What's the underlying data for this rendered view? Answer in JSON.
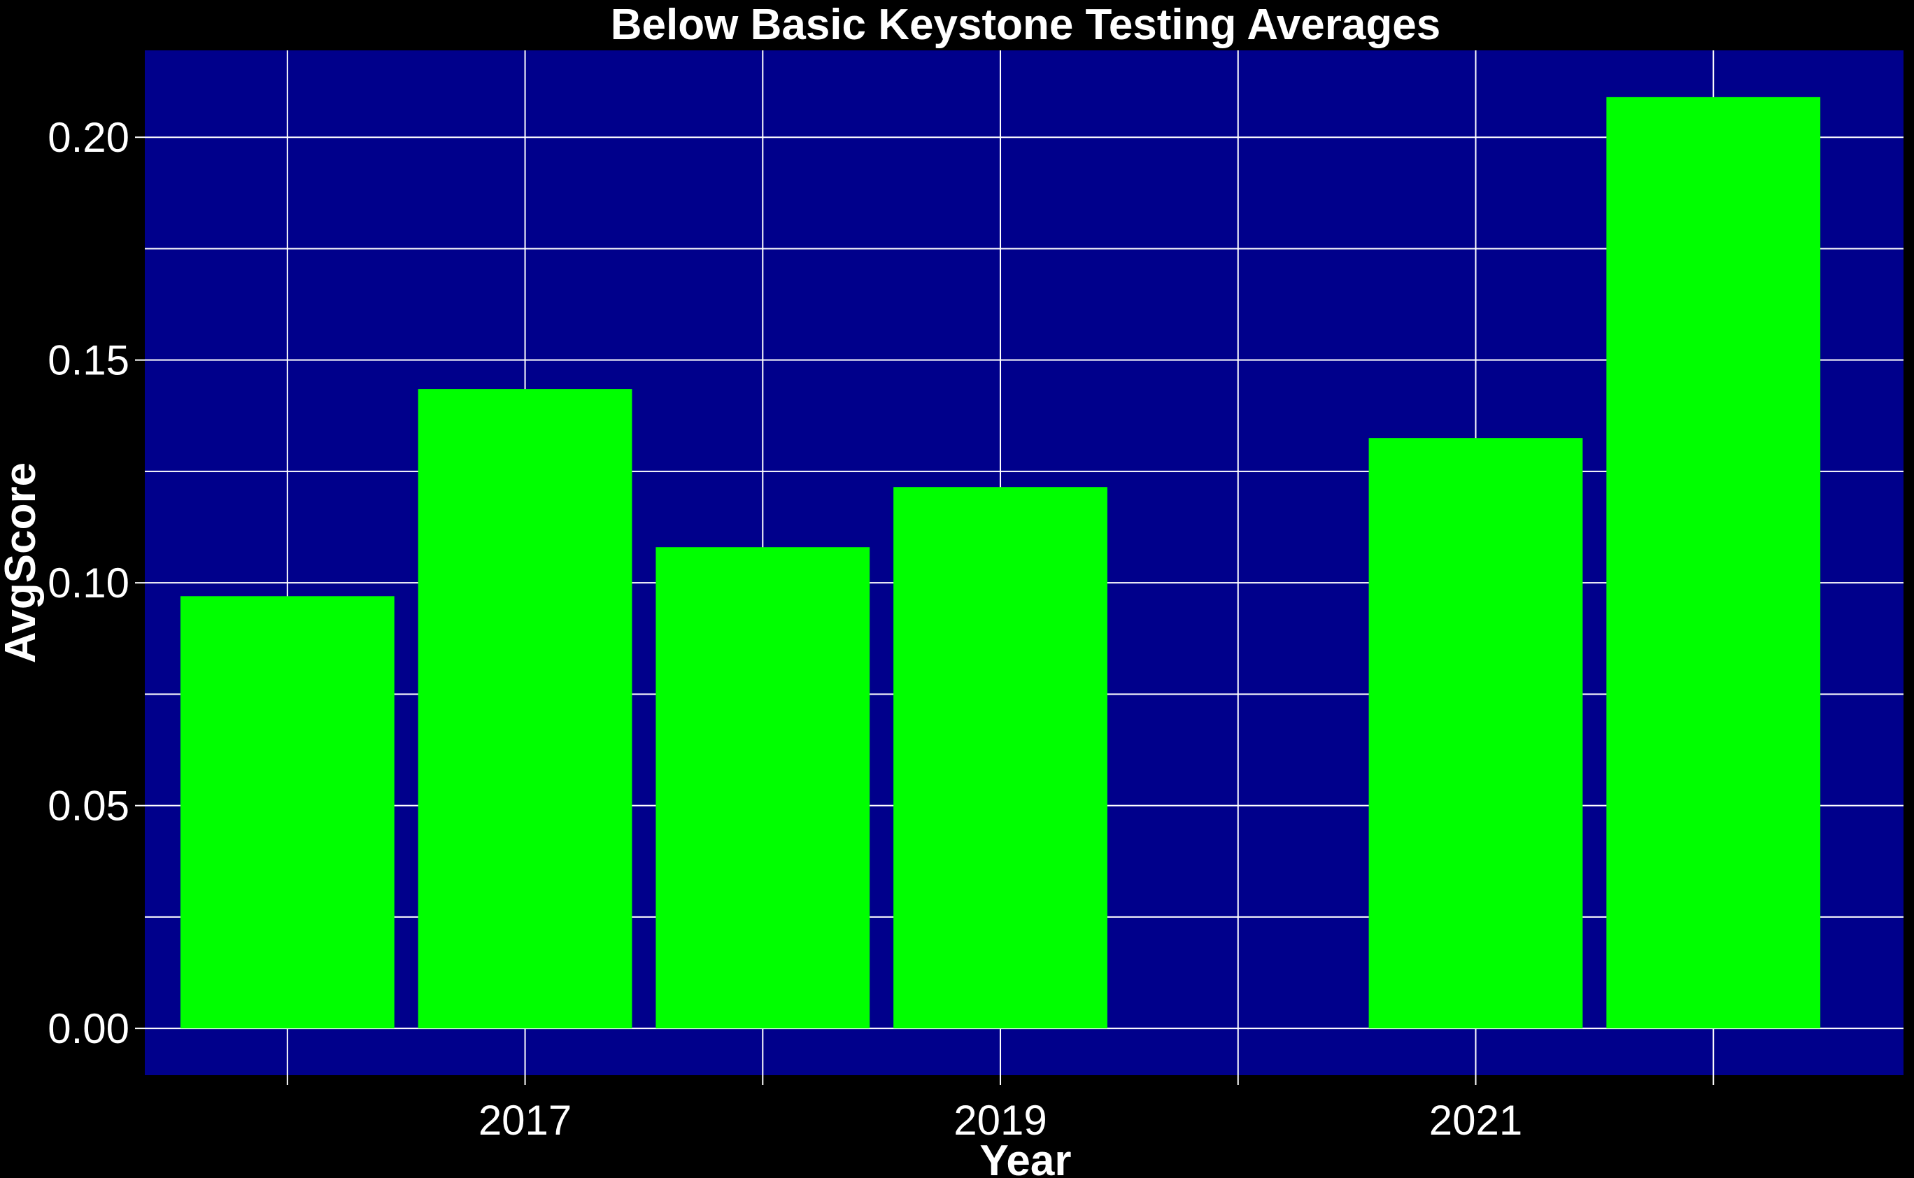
{
  "colors": {
    "background": "#000000",
    "panel": "#00008B",
    "bar": "#00FF00",
    "grid": "#FFFFFF",
    "text": "#FFFFFF"
  },
  "chart_data": {
    "type": "bar",
    "title": "Below Basic Keystone Testing Averages",
    "xlabel": "Year",
    "ylabel": "AvgScore",
    "categories": [
      2016,
      2017,
      2018,
      2019,
      2021,
      2022
    ],
    "values": [
      0.097,
      0.1435,
      0.108,
      0.1215,
      0.1325,
      0.209
    ],
    "xlim": [
      2015.4,
      2022.8
    ],
    "ylim": [
      -0.0105,
      0.2195
    ],
    "x_ticks": [
      2017,
      2019,
      2021
    ],
    "x_tick_labels": [
      "2017",
      "2019",
      "2021"
    ],
    "x_minor_gridlines": [
      2016,
      2018,
      2020,
      2022
    ],
    "y_ticks": [
      0.0,
      0.05,
      0.1,
      0.15,
      0.2
    ],
    "y_tick_labels": [
      "0.00",
      "0.05",
      "0.10",
      "0.15",
      "0.20"
    ],
    "y_minor_gridlines": [
      0.025,
      0.075,
      0.125,
      0.175
    ],
    "bar_width": 0.9,
    "grid": true,
    "legend": "none"
  }
}
